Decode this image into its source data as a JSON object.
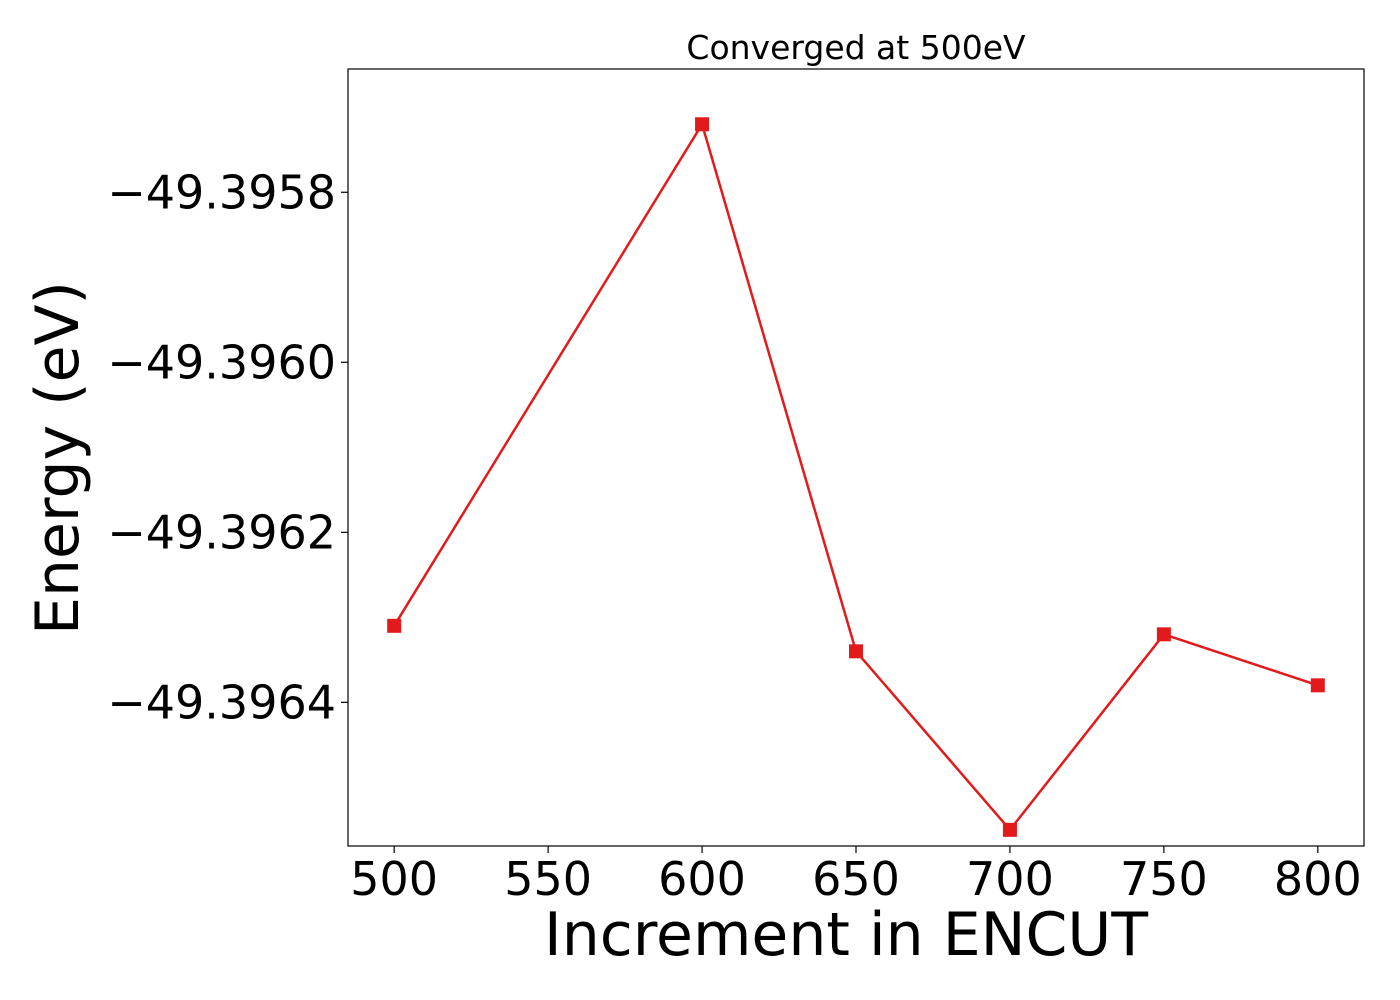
{
  "chart_data": {
    "type": "line",
    "title": "Converged at 500eV",
    "xlabel": "Increment in ENCUT",
    "ylabel": "Energy (eV)",
    "x": [
      500,
      600,
      650,
      700,
      750,
      800
    ],
    "series": [
      {
        "values": [
          -49.39631,
          -49.39572,
          -49.39634,
          -49.39655,
          -49.39632,
          -49.39638
        ],
        "color": "#e31a1c",
        "marker": "square"
      }
    ],
    "xticks": [
      500,
      550,
      600,
      650,
      700,
      750,
      800
    ],
    "xtick_labels": [
      "500",
      "550",
      "600",
      "650",
      "700",
      "750",
      "800"
    ],
    "yticks": [
      -49.3958,
      -49.396,
      -49.3962,
      -49.3964
    ],
    "ytick_labels": [
      "−49.3958",
      "−49.3960",
      "−49.3962",
      "−49.3964"
    ],
    "xlim": [
      485,
      815
    ],
    "ylim": [
      -49.396569,
      -49.395655
    ],
    "grid": false,
    "legend": false
  }
}
